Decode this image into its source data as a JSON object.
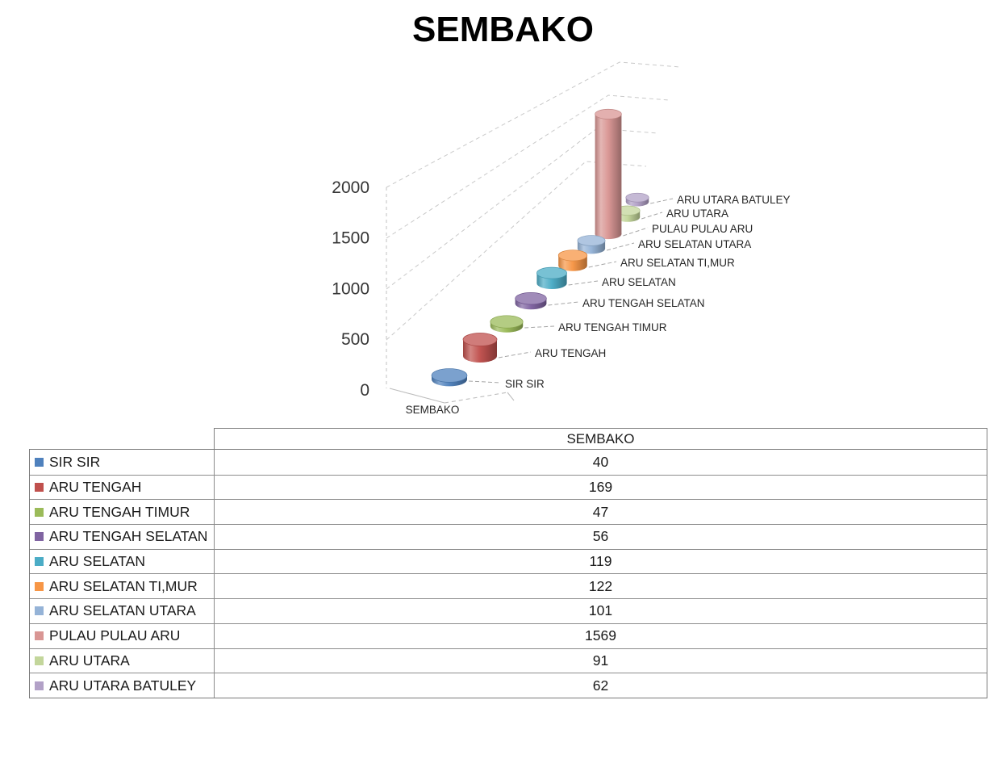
{
  "page": {
    "title": "SEMBAKO"
  },
  "chart_data": {
    "type": "bar",
    "subtype": "3d-cylinder",
    "title": "SEMBAKO",
    "categories": [
      "SIR SIR",
      "ARU TENGAH",
      "ARU TENGAH TIMUR",
      "ARU TENGAH SELATAN",
      "ARU SELATAN",
      "ARU SELATAN TI,MUR",
      "ARU SELATAN UTARA",
      "PULAU PULAU ARU",
      "ARU UTARA",
      "ARU UTARA BATULEY"
    ],
    "values": [
      40,
      169,
      47,
      56,
      119,
      122,
      101,
      1569,
      91,
      62
    ],
    "colors": [
      "#4F81BD",
      "#C0504D",
      "#9BBB59",
      "#8064A2",
      "#4BACC6",
      "#F79646",
      "#95B3D7",
      "#D99694",
      "#C3D69B",
      "#B2A1C7"
    ],
    "xlabel": "SEMBAKO",
    "ylabel": "",
    "ylim": [
      0,
      2000
    ],
    "yticks": [
      0,
      500,
      1000,
      1500,
      2000
    ],
    "grid": "dashed",
    "legend_position": "table-below-left"
  },
  "table": {
    "header_label": "SEMBAKO"
  }
}
